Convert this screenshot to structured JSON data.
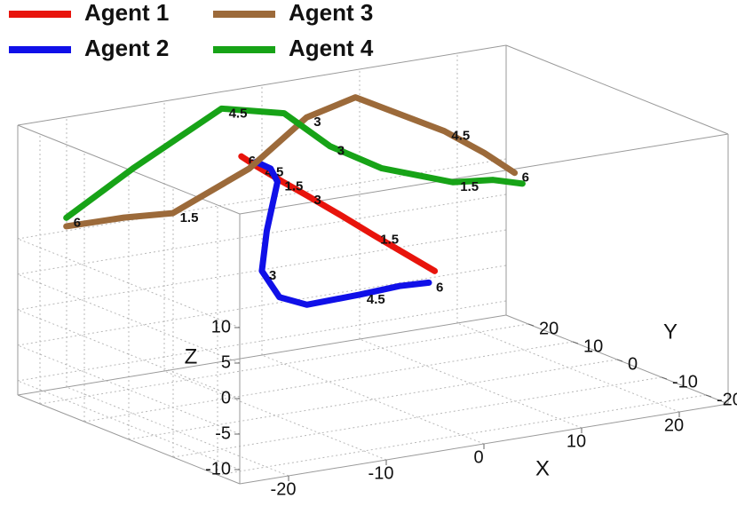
{
  "chart_data": {
    "type": "line3d",
    "series": [
      {
        "name": "Agent 1",
        "color": "#e8140c",
        "t": [
          0,
          0.75,
          1.5,
          2.25,
          3,
          3.75,
          4.5,
          5.25,
          6
        ],
        "x": [
          8.6,
          5.5,
          2.3,
          -0.9,
          -4.5,
          -7.0,
          -9.5,
          -10.4,
          -11.2
        ],
        "y": [
          5,
          5,
          5,
          5,
          5,
          5,
          5,
          5,
          5
        ],
        "z": [
          2.9,
          6.1,
          9.4,
          12.8,
          16.5,
          19.0,
          21.6,
          22.6,
          23.5
        ]
      },
      {
        "name": "Agent 2",
        "color": "#1010e8",
        "t": [
          0,
          0.75,
          1.5,
          2.25,
          3,
          3.5,
          4,
          4.5,
          5.25,
          6
        ],
        "x": [
          -9.7,
          -8.2,
          -7.5,
          -8.6,
          -9.1,
          -7.3,
          -4.5,
          0.9,
          5.0,
          8.0
        ],
        "y": [
          5,
          5,
          5,
          5,
          5,
          5,
          5,
          5,
          5,
          5
        ],
        "z": [
          22.4,
          21.1,
          19.1,
          12.4,
          6.9,
          2.8,
          1.1,
          1.3,
          1.6,
          1.4
        ]
      },
      {
        "name": "Agent 3",
        "color": "#9c6a3a",
        "t": [
          0,
          0.75,
          1.5,
          2.25,
          3,
          3.75,
          4.5,
          5.25,
          6
        ],
        "x": [
          -22.3,
          -16.4,
          -11.4,
          -3.6,
          2.3,
          7.3,
          16.4,
          20.5,
          23.6
        ],
        "y": [
          20,
          20,
          20,
          20,
          20,
          20,
          20,
          20,
          20
        ],
        "z": [
          12.4,
          12.3,
          11.8,
          16.3,
          22.2,
          23.9,
          17.1,
          13.1,
          9.6
        ]
      },
      {
        "name": "Agent 4",
        "color": "#17a317",
        "t": [
          0,
          0.75,
          1.5,
          2.25,
          3,
          3.75,
          4.5,
          5.25,
          6
        ],
        "x": [
          24.4,
          21.4,
          17.3,
          10.0,
          4.7,
          0,
          -6.4,
          -15.5,
          -22.3
        ],
        "y": [
          20,
          20,
          20,
          20,
          20,
          20,
          20,
          20,
          20
        ],
        "z": [
          7.9,
          9.1,
          9.7,
          13.3,
          17.6,
          23.3,
          25.4,
          19.0,
          13.6
        ]
      }
    ],
    "label_times": [
      1.5,
      3,
      4.5,
      6
    ],
    "xlabel": "X",
    "ylabel": "Y",
    "zlabel": "Z",
    "xlim": [
      -25,
      25
    ],
    "ylim": [
      -25,
      25
    ],
    "zlim": [
      -12,
      26
    ],
    "xticks": [
      -20,
      -10,
      0,
      10,
      20
    ],
    "yticks": [
      -20,
      -10,
      0,
      10,
      20
    ],
    "zticks": [
      -10,
      -5,
      0,
      5,
      10
    ],
    "grid": true,
    "legend": "top-left"
  }
}
